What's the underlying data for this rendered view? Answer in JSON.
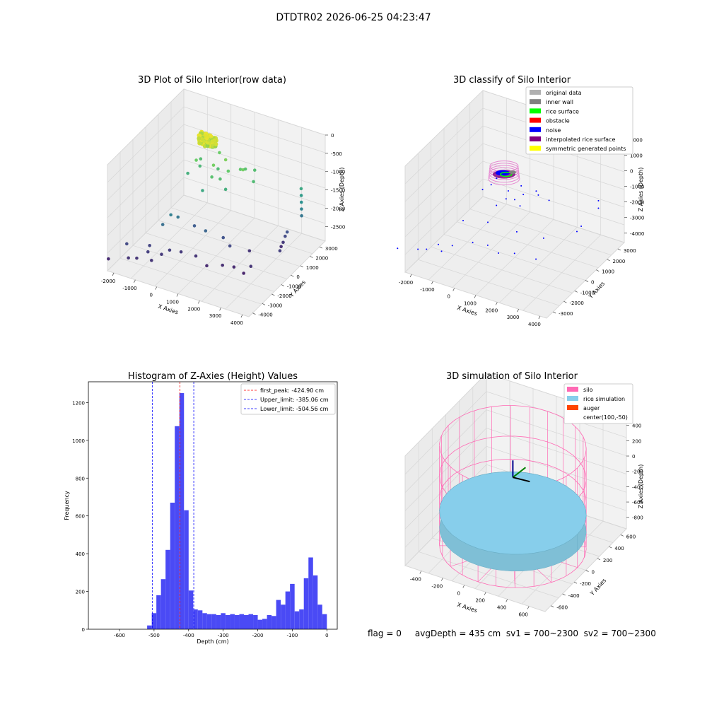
{
  "figure": {
    "suptitle": "DTDTR02 2026-06-25 04:23:47",
    "status_text": "flag = 0     avgDepth = 435 cm  sv1 = 700~2300  sv2 = 700~2300"
  },
  "colors": {
    "pane": "#f2f2f2",
    "pane_side": "#ebebeb",
    "grid": "#d6d6d6",
    "hist_bar": "#4a4af5",
    "first_peak_line": "#ff0000",
    "limit_line": "#0000ff",
    "silo": "#ff69b4",
    "rice_simulation": "#87ceeb",
    "auger": "#ff4500",
    "original_data": "#b0b0b0",
    "inner_wall": "#808080",
    "rice_surface": "#00ff00",
    "obstacle": "#ff0000",
    "noise": "#0000ff",
    "interpolated_rice_surface": "#800080",
    "symmetric_generated_points": "#ffff00"
  },
  "chart_data": [
    {
      "type": "scatter",
      "title": "3D Plot of Silo Interior(row data)",
      "xlabel": "X Axies",
      "ylabel": "Y Axies",
      "zlabel": "Z Axies (Depth)",
      "xticks": [
        "-2000",
        "-1000",
        "0",
        "1000",
        "2000",
        "3000",
        "4000"
      ],
      "yticks": [
        "-4000",
        "-3000",
        "-2000",
        "-1000",
        "0",
        "1000",
        "2000",
        "3000"
      ],
      "zticks": [
        "-2500",
        "-2000",
        "-1500",
        "-1000",
        "-500",
        "0"
      ],
      "xlim": [
        -2300,
        4300
      ],
      "ylim": [
        -4400,
        3600
      ],
      "zlim": [
        -2900,
        0
      ],
      "colormap": "viridis",
      "points": [
        [
          100,
          800,
          -100
        ],
        [
          0,
          700,
          -150
        ],
        [
          200,
          900,
          -120
        ],
        [
          -100,
          600,
          -200
        ],
        [
          300,
          700,
          -180
        ],
        [
          150,
          500,
          -90
        ],
        [
          50,
          950,
          -160
        ],
        [
          250,
          550,
          -210
        ],
        [
          -50,
          850,
          -140
        ],
        [
          350,
          800,
          -190
        ],
        [
          120,
          650,
          -110
        ],
        [
          -150,
          750,
          -230
        ],
        [
          220,
          420,
          -170
        ],
        [
          80,
          1000,
          -130
        ],
        [
          400,
          600,
          -240
        ],
        [
          -200,
          500,
          -260
        ],
        [
          180,
          850,
          -80
        ],
        [
          10,
          560,
          -205
        ],
        [
          -250,
          300,
          -700
        ],
        [
          600,
          200,
          -650
        ],
        [
          900,
          800,
          -600
        ],
        [
          1200,
          400,
          -750
        ],
        [
          1500,
          1000,
          -800
        ],
        [
          -400,
          1100,
          -900
        ],
        [
          1800,
          600,
          -650
        ],
        [
          700,
          -200,
          -850
        ],
        [
          1000,
          0,
          -900
        ],
        [
          300,
          1500,
          -700
        ],
        [
          1600,
          1300,
          -850
        ],
        [
          -300,
          800,
          -1000
        ],
        [
          500,
          900,
          -950
        ],
        [
          1300,
          -100,
          -1100
        ],
        [
          2200,
          800,
          -950
        ],
        [
          -600,
          200,
          -1100
        ],
        [
          400,
          -500,
          -1200
        ],
        [
          1900,
          1600,
          -900
        ],
        [
          3800,
          2200,
          -1200
        ],
        [
          3850,
          2100,
          -1350
        ],
        [
          3900,
          2000,
          -1500
        ],
        [
          3950,
          1900,
          -1650
        ],
        [
          4000,
          1800,
          -1800
        ],
        [
          3500,
          1200,
          -2300
        ],
        [
          3450,
          1100,
          -2450
        ],
        [
          3400,
          1000,
          -2550
        ],
        [
          3550,
          1300,
          -2200
        ],
        [
          3700,
          200,
          -2400
        ],
        [
          -500,
          -1800,
          -1700
        ],
        [
          -300,
          -1500,
          -1800
        ],
        [
          -700,
          -2200,
          -1900
        ],
        [
          200,
          -900,
          -2100
        ],
        [
          1500,
          -800,
          -2200
        ],
        [
          2500,
          -300,
          -2500
        ],
        [
          900,
          -1300,
          -2000
        ],
        [
          1900,
          -1000,
          -2300
        ],
        [
          -1500,
          -4000,
          -2500
        ],
        [
          -1800,
          -3500,
          -2300
        ],
        [
          -1200,
          -3800,
          -2500
        ],
        [
          -900,
          -3300,
          -2400
        ],
        [
          -600,
          -3600,
          -2500
        ],
        [
          -1000,
          -2900,
          -2350
        ],
        [
          -400,
          -3000,
          -2450
        ],
        [
          -200,
          -2600,
          -2400
        ],
        [
          200,
          -2300,
          -2450
        ],
        [
          800,
          -2100,
          -2500
        ],
        [
          1400,
          -2300,
          -2600
        ],
        [
          2000,
          -2000,
          -2550
        ],
        [
          2400,
          -1700,
          -2600
        ],
        [
          2900,
          -1800,
          -2650
        ],
        [
          3100,
          -1500,
          -2500
        ],
        [
          -2300,
          -4300,
          -2600
        ]
      ]
    },
    {
      "type": "scatter",
      "title": "3D classify of Silo Interior",
      "xlabel": "X Axies",
      "ylabel": "Y Axies",
      "zlabel": "Z Axies (Depth)",
      "xticks": [
        "-2000",
        "-1000",
        "0",
        "1000",
        "2000",
        "3000",
        "4000"
      ],
      "yticks": [
        "-3000",
        "-2000",
        "-1000",
        "0",
        "1000",
        "2000",
        "3000"
      ],
      "zticks": [
        "-4000",
        "-3000",
        "-2000",
        "-1000",
        "0",
        "1000",
        "2000"
      ],
      "xlim": [
        -2300,
        4300
      ],
      "ylim": [
        -3600,
        3600
      ],
      "zlim": [
        -4600,
        2200
      ],
      "legend": [
        "original data",
        "inner wall",
        "rice surface",
        "obstacle",
        "noise",
        "interpolated rice surface",
        "symmetric generated points"
      ],
      "noise_points": [
        [
          -250,
          300,
          -700
        ],
        [
          600,
          200,
          -650
        ],
        [
          900,
          800,
          -600
        ],
        [
          1200,
          400,
          -750
        ],
        [
          1500,
          1000,
          -800
        ],
        [
          -400,
          1100,
          -900
        ],
        [
          1800,
          600,
          -650
        ],
        [
          700,
          -200,
          -850
        ],
        [
          1000,
          0,
          -900
        ],
        [
          1300,
          -100,
          -1100
        ],
        [
          2200,
          800,
          -950
        ],
        [
          -600,
          200,
          -1100
        ],
        [
          400,
          -500,
          -1200
        ],
        [
          3800,
          2200,
          -1200
        ],
        [
          3900,
          2000,
          -1500
        ],
        [
          3500,
          1200,
          -2300
        ],
        [
          3400,
          1000,
          -2550
        ],
        [
          -500,
          -1800,
          -1700
        ],
        [
          200,
          -900,
          -2100
        ],
        [
          1500,
          -800,
          -2200
        ],
        [
          2500,
          -300,
          -2500
        ],
        [
          -1500,
          -4000,
          -2500
        ],
        [
          -1200,
          -3800,
          -2500
        ],
        [
          -900,
          -3300,
          -2400
        ],
        [
          -600,
          -3600,
          -2500
        ],
        [
          -400,
          -3000,
          -2450
        ],
        [
          200,
          -2300,
          -2450
        ],
        [
          800,
          -2100,
          -2500
        ],
        [
          1400,
          -2300,
          -2600
        ],
        [
          2000,
          -2000,
          -2550
        ],
        [
          2900,
          -1800,
          -2650
        ],
        [
          -2300,
          -4300,
          -2600
        ]
      ]
    },
    {
      "type": "bar",
      "title": "Histogram of Z-Axies (Height) Values",
      "xlabel": "Depth (cm)",
      "ylabel": "Frequency",
      "xlim": [
        -690,
        30
      ],
      "ylim": [
        0,
        1310
      ],
      "xticks": [
        "-600",
        "-500",
        "-400",
        "-300",
        "-200",
        "-100",
        "0"
      ],
      "yticks": [
        "0",
        "200",
        "400",
        "600",
        "800",
        "1000",
        "1200"
      ],
      "bin_width": 13.33,
      "bins": [
        [
          -520,
          20
        ],
        [
          -506.7,
          85
        ],
        [
          -493.3,
          180
        ],
        [
          -480,
          265
        ],
        [
          -466.7,
          420
        ],
        [
          -453.3,
          670
        ],
        [
          -440,
          1075
        ],
        [
          -426.7,
          1250
        ],
        [
          -413.3,
          630
        ],
        [
          -400,
          205
        ],
        [
          -386.7,
          105
        ],
        [
          -373.3,
          100
        ],
        [
          -360,
          85
        ],
        [
          -346.7,
          80
        ],
        [
          -333.3,
          80
        ],
        [
          -320,
          75
        ],
        [
          -306.7,
          85
        ],
        [
          -293.3,
          75
        ],
        [
          -280,
          80
        ],
        [
          -266.7,
          75
        ],
        [
          -253.3,
          80
        ],
        [
          -240,
          75
        ],
        [
          -226.7,
          80
        ],
        [
          -213.3,
          75
        ],
        [
          -200,
          50
        ],
        [
          -186.7,
          55
        ],
        [
          -173.3,
          75
        ],
        [
          -160,
          70
        ],
        [
          -146.7,
          155
        ],
        [
          -133.3,
          130
        ],
        [
          -120,
          200
        ],
        [
          -106.7,
          240
        ],
        [
          -93.3,
          95
        ],
        [
          -80,
          105
        ],
        [
          -66.7,
          270
        ],
        [
          -53.3,
          380
        ],
        [
          -40,
          285
        ],
        [
          -26.7,
          130
        ],
        [
          -13.3,
          80
        ]
      ],
      "vlines": [
        {
          "label": "first_peak: -424.90 cm",
          "x": -424.9,
          "color": "#ff0000"
        },
        {
          "label": "Upper_limit: -385.06 cm",
          "x": -385.06,
          "color": "#0000ff"
        },
        {
          "label": "Lower_limit: -504.56 cm",
          "x": -504.56,
          "color": "#0000ff"
        }
      ],
      "legend_position": "top-right"
    },
    {
      "type": "scatter",
      "title": "3D simulation of Silo Interior",
      "xlabel": "X Axies",
      "ylabel": "Y Axies",
      "zlabel": "Z Axies (Depth)",
      "xticks": [
        "-400",
        "-200",
        "0",
        "200",
        "400",
        "600"
      ],
      "yticks": [
        "-600",
        "-400",
        "-200",
        "0",
        "200",
        "400",
        "600"
      ],
      "zticks": [
        "-800",
        "-600",
        "-400",
        "-200",
        "0",
        "200",
        "400"
      ],
      "xlim": [
        -550,
        750
      ],
      "ylim": [
        -700,
        700
      ],
      "zlim": [
        -950,
        480
      ],
      "legend": [
        "silo",
        "rice simulation",
        "auger",
        "center(100,-50)"
      ],
      "silo_radius": 600,
      "silo_height": [
        -900,
        400
      ],
      "rice_level": -435,
      "center": [
        100,
        -50
      ]
    }
  ]
}
